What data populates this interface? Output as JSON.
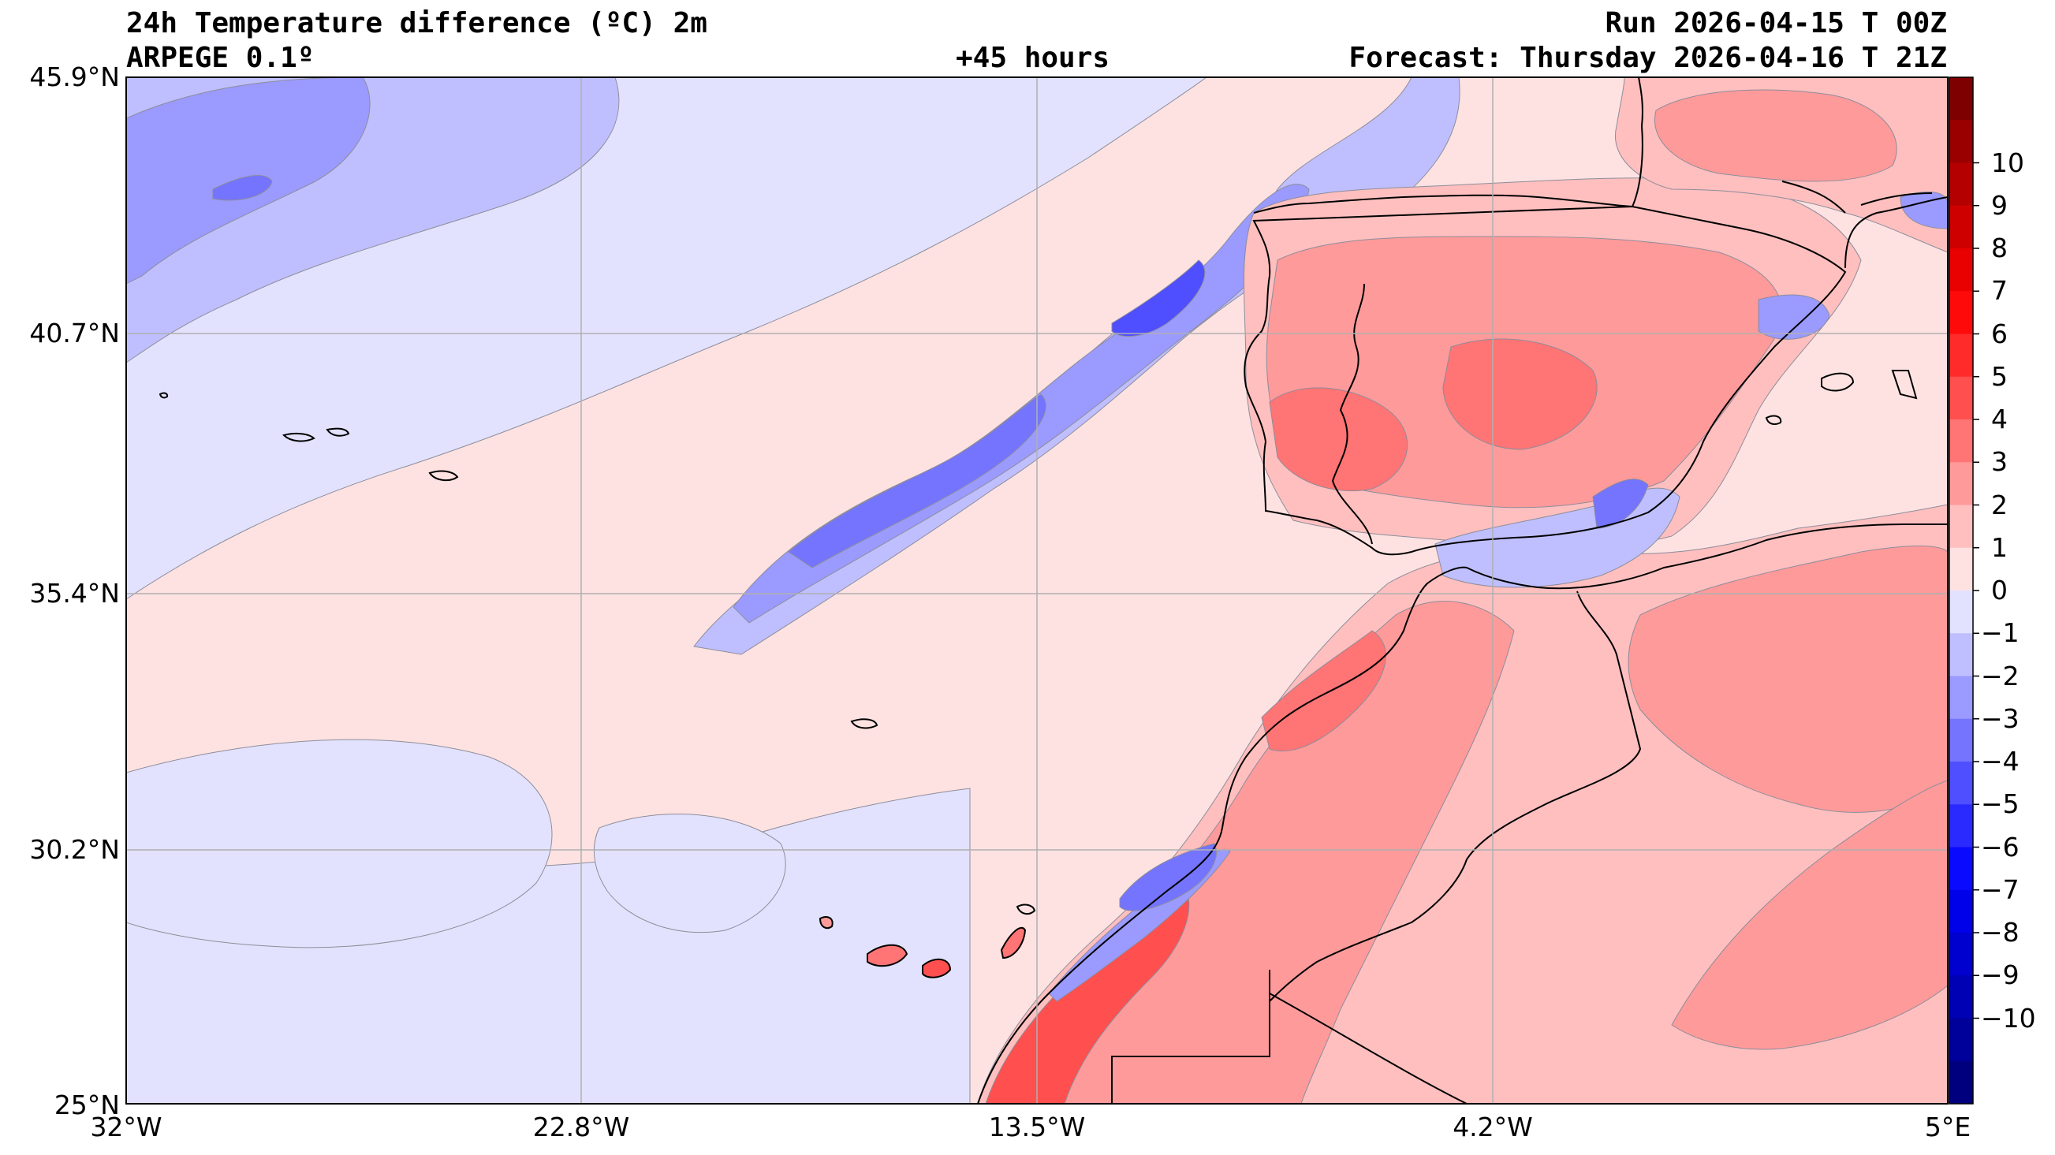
{
  "header": {
    "title": "24h Temperature difference (ºC) 2m",
    "model": "ARPEGE 0.1º",
    "lead_time": "+45 hours",
    "run": "Run 2026-04-15 T 00Z",
    "forecast": "Forecast: Thursday 2026-04-16 T 21Z"
  },
  "map": {
    "lat_labels": [
      "45.9°N",
      "40.7°N",
      "35.4°N",
      "30.2°N",
      "25°N"
    ],
    "lon_labels": [
      "32°W",
      "22.8°W",
      "13.5°W",
      "4.2°W",
      "5°E"
    ],
    "region": "Eastern North Atlantic, Iberian Peninsula, Morocco, Canary Islands, Western Algeria"
  },
  "colorbar": {
    "labels": [
      "10",
      "9",
      "8",
      "7",
      "6",
      "5",
      "4",
      "3",
      "2",
      "1",
      "0",
      "−1",
      "−2",
      "−3",
      "−4",
      "−5",
      "−6",
      "−7",
      "−8",
      "−9",
      "−10"
    ],
    "colors": [
      "#7f0000",
      "#9a0000",
      "#b40000",
      "#cf0000",
      "#e90000",
      "#ff0a0a",
      "#ff2a2a",
      "#ff4f4f",
      "#ff7474",
      "#ff9a9a",
      "#ffbfbf",
      "#fee2e2",
      "#e2e2fe",
      "#bfbfff",
      "#9a9aff",
      "#7474ff",
      "#4f4fff",
      "#2a2aff",
      "#0a0aff",
      "#0000e9",
      "#0000cf",
      "#0000b4",
      "#00009a",
      "#00007f"
    ],
    "palette": {
      "ocean_pos": "#fee2e2",
      "ocean_neg": "#e2e2fe",
      "blue_1": "#bfbfff",
      "blue_2": "#9a9aff",
      "blue_3": "#7474ff",
      "blue_4": "#4f4fff",
      "red_1": "#ffbfbf",
      "red_2": "#ff9a9a",
      "red_3": "#ff7474",
      "red_4": "#ff4f4f",
      "coast": "#000000",
      "grid": "#b0b0b0"
    }
  }
}
